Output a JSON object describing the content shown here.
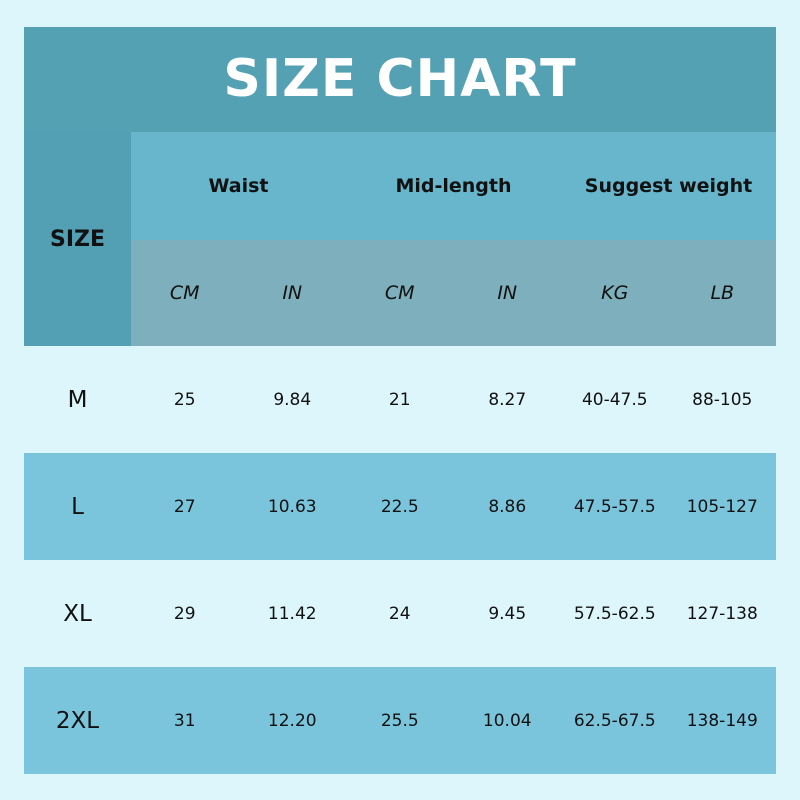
{
  "title": "SIZE CHART",
  "size_header": "SIZE",
  "groups": [
    "Waist",
    "Mid-length",
    "Suggest weight"
  ],
  "units": [
    "CM",
    "IN",
    "CM",
    "IN",
    "KG",
    "LB"
  ],
  "colors": {
    "background": "#ddf6fb",
    "title_band": "#55a1b4",
    "group_header": "#67b6cc",
    "unit_header": "#7eafbc",
    "striped_row": "#7ac4dc"
  },
  "rows": [
    {
      "size": "M",
      "values": [
        "25",
        "9.84",
        "21",
        "8.27",
        "40-47.5",
        "88-105"
      ]
    },
    {
      "size": "L",
      "values": [
        "27",
        "10.63",
        "22.5",
        "8.86",
        "47.5-57.5",
        "105-127"
      ]
    },
    {
      "size": "XL",
      "values": [
        "29",
        "11.42",
        "24",
        "9.45",
        "57.5-62.5",
        "127-138"
      ]
    },
    {
      "size": "2XL",
      "values": [
        "31",
        "12.20",
        "25.5",
        "10.04",
        "62.5-67.5",
        "138-149"
      ]
    }
  ]
}
